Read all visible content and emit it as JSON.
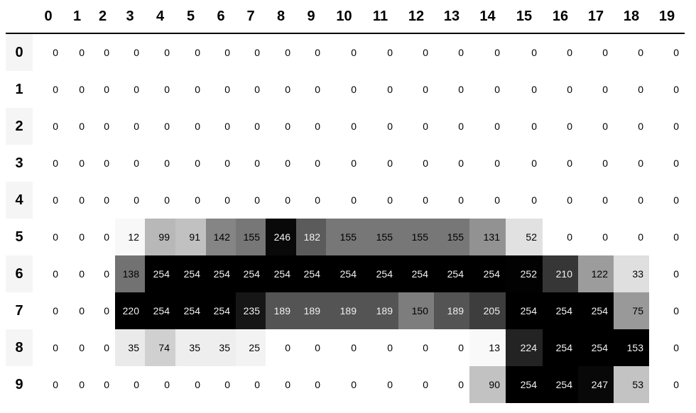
{
  "table": {
    "columns": [
      "0",
      "1",
      "2",
      "3",
      "4",
      "5",
      "6",
      "7",
      "8",
      "9",
      "10",
      "11",
      "12",
      "13",
      "14",
      "15",
      "16",
      "17",
      "18",
      "19"
    ],
    "index": [
      "0",
      "1",
      "2",
      "3",
      "4",
      "5",
      "6",
      "7",
      "8",
      "9"
    ],
    "rows": [
      [
        0,
        0,
        0,
        0,
        0,
        0,
        0,
        0,
        0,
        0,
        0,
        0,
        0,
        0,
        0,
        0,
        0,
        0,
        0,
        0
      ],
      [
        0,
        0,
        0,
        0,
        0,
        0,
        0,
        0,
        0,
        0,
        0,
        0,
        0,
        0,
        0,
        0,
        0,
        0,
        0,
        0
      ],
      [
        0,
        0,
        0,
        0,
        0,
        0,
        0,
        0,
        0,
        0,
        0,
        0,
        0,
        0,
        0,
        0,
        0,
        0,
        0,
        0
      ],
      [
        0,
        0,
        0,
        0,
        0,
        0,
        0,
        0,
        0,
        0,
        0,
        0,
        0,
        0,
        0,
        0,
        0,
        0,
        0,
        0
      ],
      [
        0,
        0,
        0,
        0,
        0,
        0,
        0,
        0,
        0,
        0,
        0,
        0,
        0,
        0,
        0,
        0,
        0,
        0,
        0,
        0
      ],
      [
        0,
        0,
        0,
        12,
        99,
        91,
        142,
        155,
        246,
        182,
        155,
        155,
        155,
        155,
        131,
        52,
        0,
        0,
        0,
        0
      ],
      [
        0,
        0,
        0,
        138,
        254,
        254,
        254,
        254,
        254,
        254,
        254,
        254,
        254,
        254,
        254,
        252,
        210,
        122,
        33,
        0
      ],
      [
        0,
        0,
        0,
        220,
        254,
        254,
        254,
        235,
        189,
        189,
        189,
        189,
        150,
        189,
        205,
        254,
        254,
        254,
        75,
        0
      ],
      [
        0,
        0,
        0,
        35,
        74,
        35,
        35,
        25,
        0,
        0,
        0,
        0,
        0,
        0,
        13,
        224,
        254,
        254,
        153,
        0
      ],
      [
        0,
        0,
        0,
        0,
        0,
        0,
        0,
        0,
        0,
        0,
        0,
        0,
        0,
        0,
        90,
        254,
        254,
        247,
        53,
        0
      ]
    ],
    "colormap": "Greys",
    "gradient_axis": "column"
  }
}
